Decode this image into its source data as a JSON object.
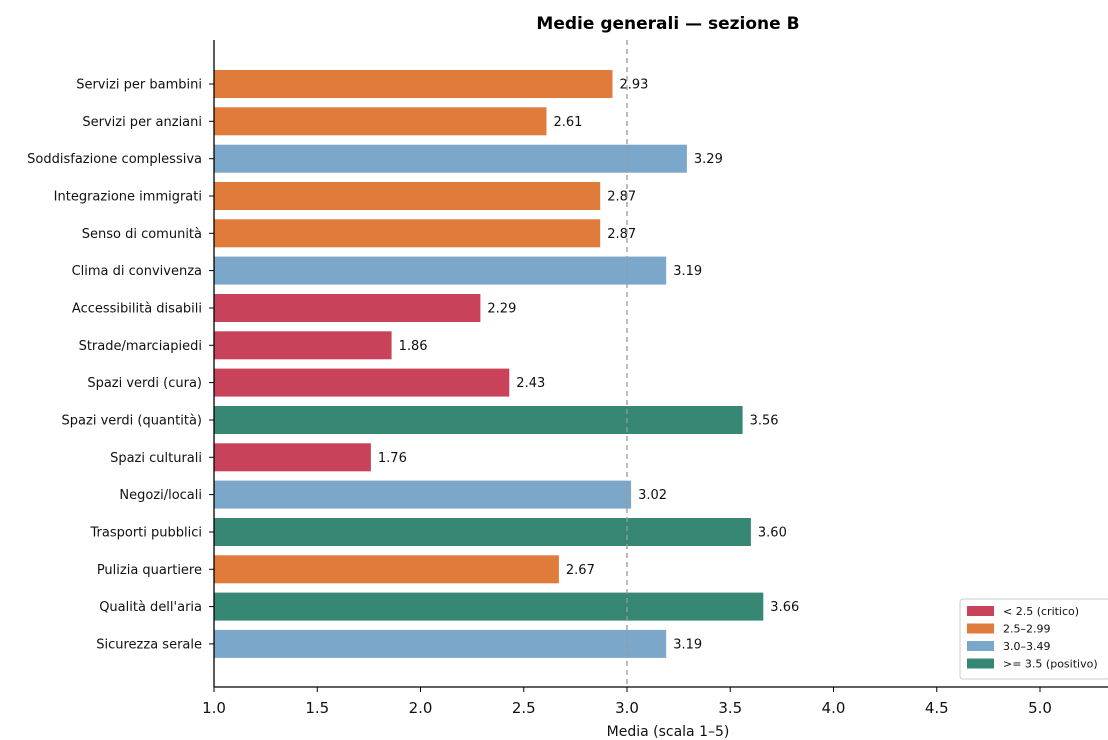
{
  "chart_data": {
    "type": "bar",
    "orientation": "horizontal",
    "title": "Medie generali — sezione B",
    "xlabel": "Media (scala 1–5)",
    "ylabel": "",
    "xlim": [
      1.0,
      5.0
    ],
    "x_ticks": [
      "1.0",
      "1.5",
      "2.0",
      "2.5",
      "3.0",
      "3.5",
      "4.0",
      "4.5",
      "5.0"
    ],
    "reference_line": 3.0,
    "grid": false,
    "legend_position": "bottom-right",
    "legend": [
      {
        "label": "< 2.5 (critico)",
        "color": "#c8435a"
      },
      {
        "label": "2.5–2.99",
        "color": "#e07b3c"
      },
      {
        "label": "3.0–3.49",
        "color": "#7ba7cb"
      },
      {
        "label": ">= 3.5 (positivo)",
        "color": "#368875"
      }
    ],
    "categories": [
      "Servizi per bambini",
      "Servizi per anziani",
      "Soddisfazione complessiva",
      "Integrazione immigrati",
      "Senso di comunità",
      "Clima di convivenza",
      "Accessibilità disabili",
      "Strade/marciapiedi",
      "Spazi verdi (cura)",
      "Spazi verdi (quantità)",
      "Spazi culturali",
      "Negozi/locali",
      "Trasporti pubblici",
      "Pulizia quartiere",
      "Qualità dell'aria",
      "Sicurezza serale"
    ],
    "values": [
      2.93,
      2.61,
      3.29,
      2.87,
      2.87,
      3.19,
      2.29,
      1.86,
      2.43,
      3.56,
      1.76,
      3.02,
      3.6,
      2.67,
      3.66,
      3.19
    ],
    "value_labels": [
      "2.93",
      "2.61",
      "3.29",
      "2.87",
      "2.87",
      "3.19",
      "2.29",
      "1.86",
      "2.43",
      "3.56",
      "1.76",
      "3.02",
      "3.60",
      "2.67",
      "3.66",
      "3.19"
    ]
  }
}
